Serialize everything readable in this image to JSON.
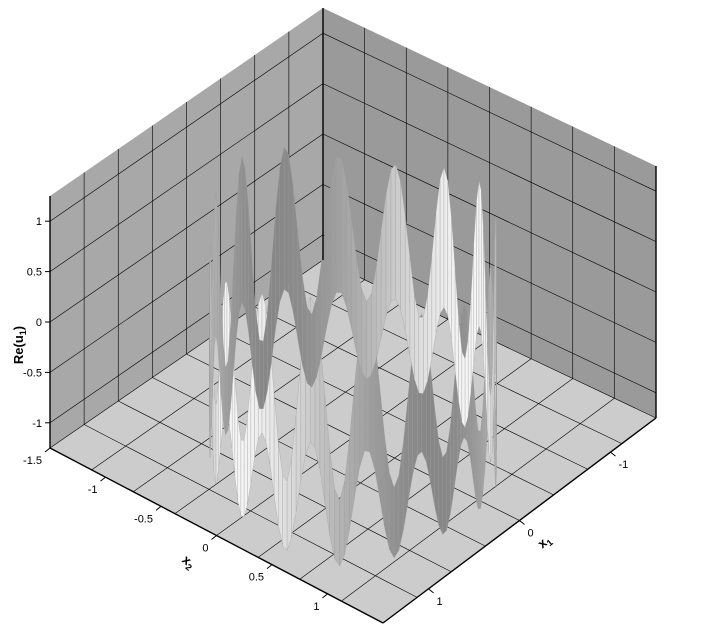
{
  "chart_data": {
    "type": "surface",
    "title": "",
    "xlabel": "x",
    "xlabel_sub": "1",
    "ylabel": "x",
    "ylabel_sub": "2",
    "zlabel": "Re(u",
    "zlabel_sub": "1",
    "zlabel_close": ")",
    "x_ticks": [
      "-1",
      "0",
      "1"
    ],
    "y_ticks": [
      "-1.5",
      "-1",
      "-0.5",
      "0",
      "0.5",
      "1"
    ],
    "z_ticks": [
      "1",
      "0.5",
      "0",
      "-0.5",
      "-1"
    ],
    "xlim": [
      -1.5,
      1.5
    ],
    "ylim": [
      -1.5,
      1.5
    ],
    "zlim": [
      -1.25,
      1.25
    ],
    "grid": true,
    "surface": {
      "shape": "ring",
      "radius": 1.0,
      "lobes": 16,
      "amplitude": 1.0,
      "color": "#d8d8d8"
    },
    "colors": {
      "back_wall_left": "#a8a8a8",
      "back_wall_right": "#9a9a9a",
      "floor": "#cccccc",
      "grid": "#000000"
    }
  }
}
